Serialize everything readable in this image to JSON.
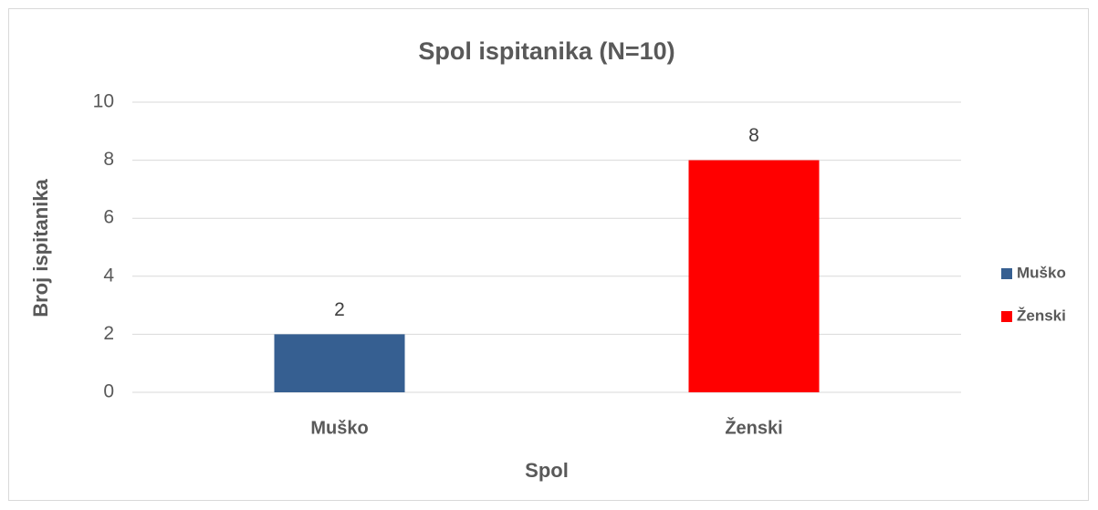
{
  "chart_data": {
    "type": "bar",
    "title": "Spol ispitanika (N=10)",
    "x_label": "Spol",
    "y_label": "Broj ispitanika",
    "categories": [
      "Muško",
      "Ženski"
    ],
    "values": [
      2,
      8
    ],
    "colors": [
      "#365f91",
      "#ff0000"
    ],
    "ylim": [
      0,
      10
    ],
    "yticks": [
      0,
      2,
      4,
      6,
      8,
      10
    ],
    "grid": true,
    "legend": "right"
  }
}
